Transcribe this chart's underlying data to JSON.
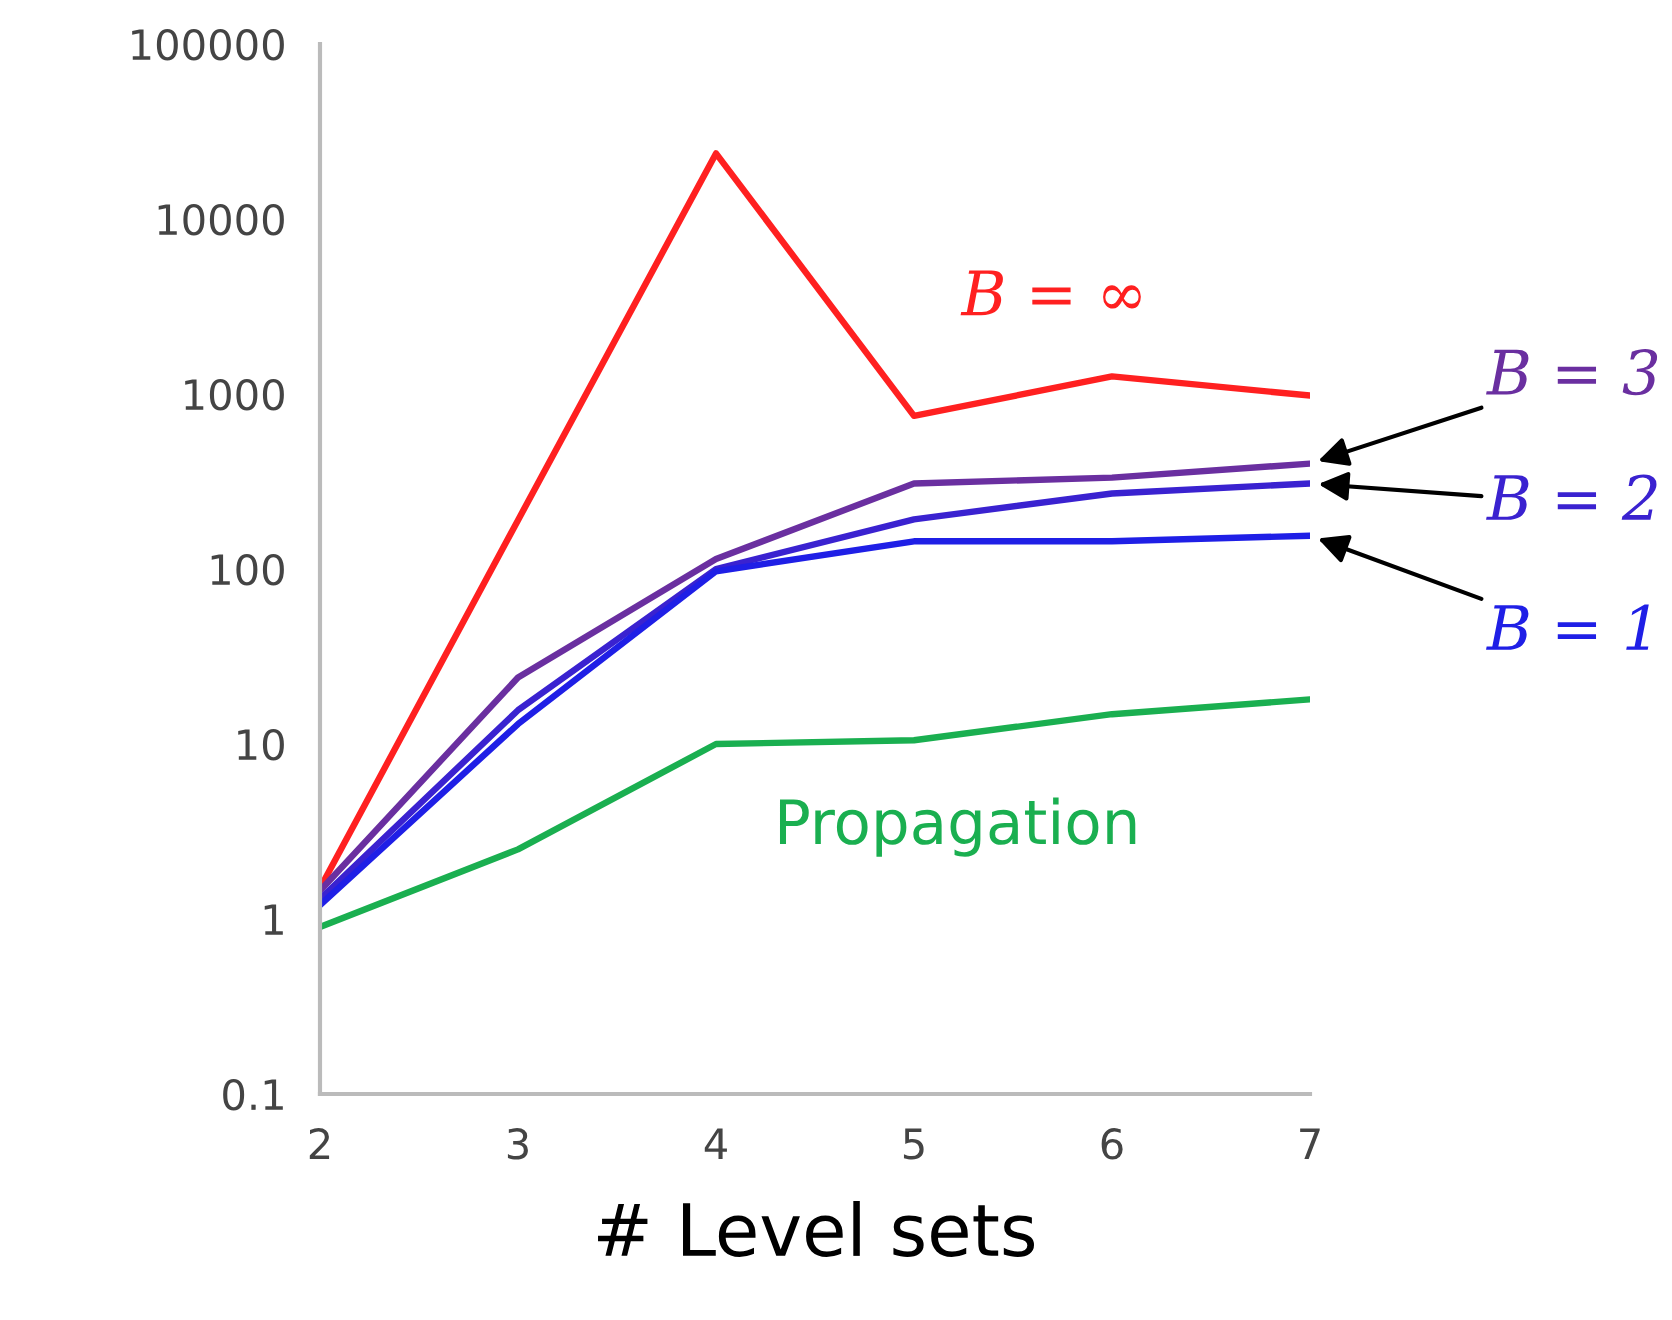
{
  "chart_data": {
    "type": "line",
    "xlabel": "# Level sets",
    "x": [
      2,
      3,
      4,
      5,
      6,
      7
    ],
    "log": "y",
    "xlim": [
      2,
      7
    ],
    "xticks": [
      2,
      3,
      4,
      5,
      6,
      7
    ],
    "ylim": [
      0.1,
      100000
    ],
    "yticks": [
      0.1,
      1,
      10,
      100,
      1000,
      10000,
      100000
    ],
    "grid": false,
    "legend": false,
    "marker": "none",
    "line_style": "solid",
    "series": [
      {
        "name": "B = ∞",
        "color": "#ff2020",
        "values": [
          1.5,
          190,
          23700,
          750,
          1260,
          980
        ]
      },
      {
        "name": "B = 3",
        "color": "#6a2fa0",
        "values": [
          1.45,
          24,
          114,
          308,
          333,
          400
        ]
      },
      {
        "name": "B = 2",
        "color": "#3a22d0",
        "values": [
          1.3,
          15.6,
          100,
          192,
          270,
          308
        ]
      },
      {
        "name": "B = 1",
        "color": "#1f1fe6",
        "values": [
          1.2,
          13,
          97,
          144,
          144,
          155
        ]
      },
      {
        "name": "Propagation",
        "color": "#1aaf50",
        "values": [
          0.9,
          2.5,
          10,
          10.5,
          14.8,
          18
        ]
      }
    ]
  }
}
